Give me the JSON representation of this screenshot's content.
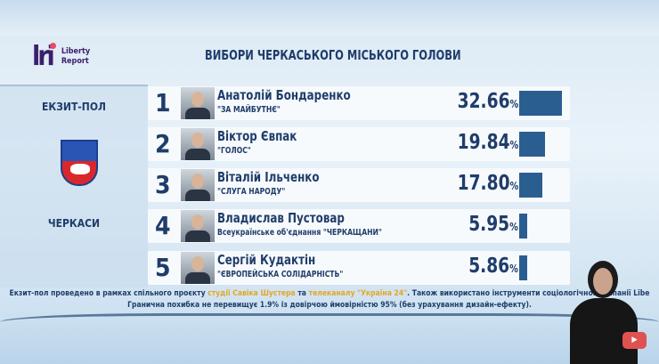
{
  "brand": {
    "logo_letters": "lri",
    "line1": "Liberty",
    "line2": "Report"
  },
  "title": "ВИБОРИ ЧЕРКАСЬКОГО МІСЬКОГО ГОЛОВИ",
  "side": {
    "exit_poll": "ЕКЗИТ-ПОЛ",
    "city": "ЧЕРКАСИ"
  },
  "colors": {
    "bar": "#2a5e91",
    "text": "#1f3d6b",
    "highlight": "#e5a623"
  },
  "chart_data": {
    "type": "bar",
    "title": "ВИБОРИ ЧЕРКАСЬКОГО МІСЬКОГО ГОЛОВИ",
    "orientation": "horizontal",
    "unit": "%",
    "categories": [
      "Анатолій Бондаренко",
      "Віктор Євпак",
      "Віталій Ільченко",
      "Владислав Пустовар",
      "Сергій Кудактін"
    ],
    "values": [
      32.66,
      19.84,
      17.8,
      5.95,
      5.86
    ],
    "rows": [
      {
        "rank": "1",
        "name": "Анатолій Бондаренко",
        "party": "\"ЗА МАЙБУТНЄ\"",
        "value": "32.66"
      },
      {
        "rank": "2",
        "name": "Віктор Євпак",
        "party": "\"ГОЛОС\"",
        "value": "19.84"
      },
      {
        "rank": "3",
        "name": "Віталій Ільченко",
        "party": "\"СЛУГА НАРОДУ\"",
        "value": "17.80"
      },
      {
        "rank": "4",
        "name": "Владислав Пустовар",
        "party": "Всеукраїнське об'єднання \"ЧЕРКАЩАНИ\"",
        "value": "5.95"
      },
      {
        "rank": "5",
        "name": "Сергій Кудактін",
        "party": "\"ЄВРОПЕЙСЬКА СОЛІДАРНІСТЬ\"",
        "value": "5.86"
      }
    ]
  },
  "pct_sign": "%",
  "footnote": {
    "a": "Екзит-пол проведено в рамках спільного проєкту ",
    "b": "студії Савіка Шустера",
    "c": " та ",
    "d": "телеканалу \"Україна 24\"",
    "e": ". Також використано інструменти соціологічної компанії Libe",
    "line2": "Гранична похибка не перевищує 1.9% із довірчою ймовірністю 95% (без урахування дизайн-ефекту)."
  }
}
